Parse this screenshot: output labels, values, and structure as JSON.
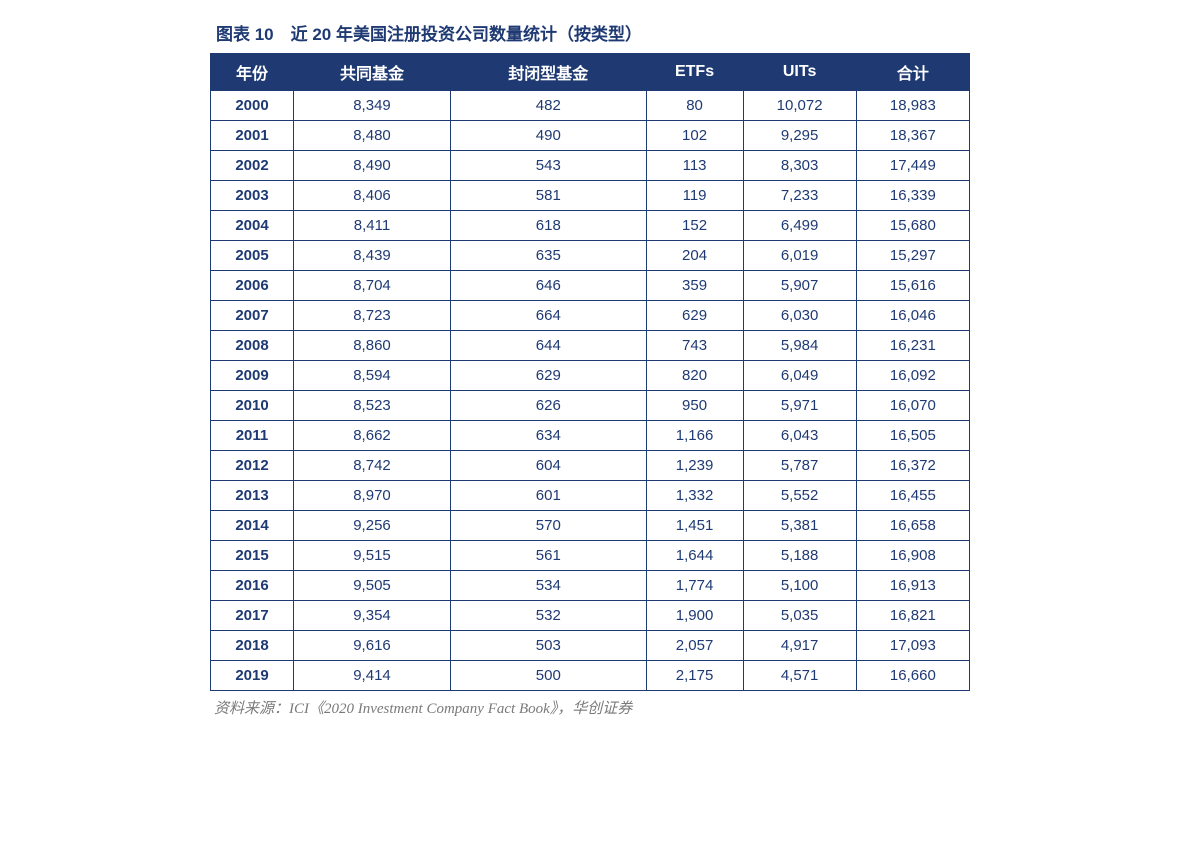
{
  "title": "图表 10　近 20 年美国注册投资公司数量统计（按类型）",
  "source": "资料来源：ICI《2020 Investment Company Fact Book》，华创证券",
  "table": {
    "type": "table",
    "header_bg": "#1f3a73",
    "header_fg": "#ffffff",
    "cell_fg": "#1f3a73",
    "border_color": "#1f3a73",
    "columns": [
      "年份",
      "共同基金",
      "封闭型基金",
      "ETFs",
      "UITs",
      "合计"
    ],
    "rows": [
      [
        "2000",
        "8,349",
        "482",
        "80",
        "10,072",
        "18,983"
      ],
      [
        "2001",
        "8,480",
        "490",
        "102",
        "9,295",
        "18,367"
      ],
      [
        "2002",
        "8,490",
        "543",
        "113",
        "8,303",
        "17,449"
      ],
      [
        "2003",
        "8,406",
        "581",
        "119",
        "7,233",
        "16,339"
      ],
      [
        "2004",
        "8,411",
        "618",
        "152",
        "6,499",
        "15,680"
      ],
      [
        "2005",
        "8,439",
        "635",
        "204",
        "6,019",
        "15,297"
      ],
      [
        "2006",
        "8,704",
        "646",
        "359",
        "5,907",
        "15,616"
      ],
      [
        "2007",
        "8,723",
        "664",
        "629",
        "6,030",
        "16,046"
      ],
      [
        "2008",
        "8,860",
        "644",
        "743",
        "5,984",
        "16,231"
      ],
      [
        "2009",
        "8,594",
        "629",
        "820",
        "6,049",
        "16,092"
      ],
      [
        "2010",
        "8,523",
        "626",
        "950",
        "5,971",
        "16,070"
      ],
      [
        "2011",
        "8,662",
        "634",
        "1,166",
        "6,043",
        "16,505"
      ],
      [
        "2012",
        "8,742",
        "604",
        "1,239",
        "5,787",
        "16,372"
      ],
      [
        "2013",
        "8,970",
        "601",
        "1,332",
        "5,552",
        "16,455"
      ],
      [
        "2014",
        "9,256",
        "570",
        "1,451",
        "5,381",
        "16,658"
      ],
      [
        "2015",
        "9,515",
        "561",
        "1,644",
        "5,188",
        "16,908"
      ],
      [
        "2016",
        "9,505",
        "534",
        "1,774",
        "5,100",
        "16,913"
      ],
      [
        "2017",
        "9,354",
        "532",
        "1,900",
        "5,035",
        "16,821"
      ],
      [
        "2018",
        "9,616",
        "503",
        "2,057",
        "4,917",
        "17,093"
      ],
      [
        "2019",
        "9,414",
        "500",
        "2,175",
        "4,571",
        "16,660"
      ]
    ]
  }
}
